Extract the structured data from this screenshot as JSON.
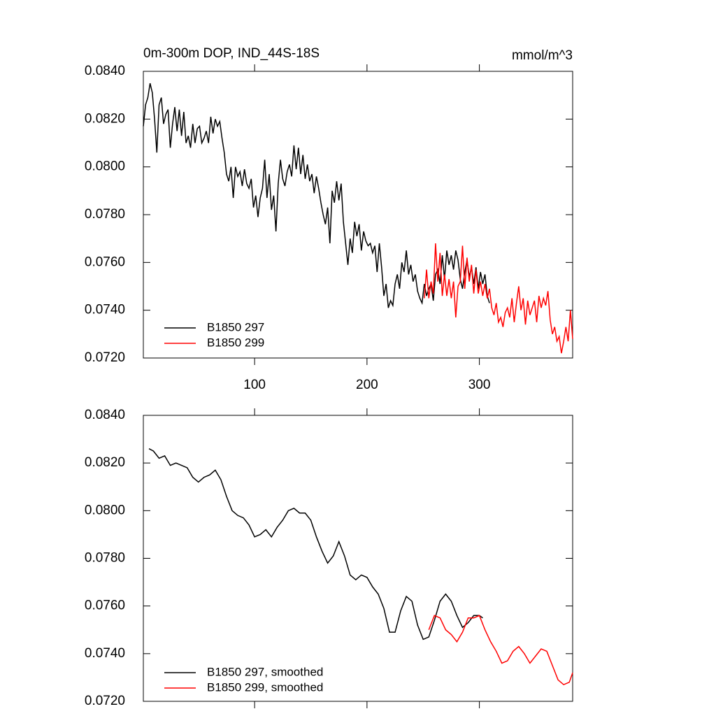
{
  "chart_data": [
    {
      "type": "line",
      "title": "0m-300m DOP, IND_44S-18S",
      "units": "mmol/m^3",
      "xlim": [
        1,
        383
      ],
      "ylim": [
        0.072,
        0.084
      ],
      "xticks": [
        100,
        200,
        300
      ],
      "yticks": [
        {
          "value": 0.072,
          "label": "0.0720"
        },
        {
          "value": 0.074,
          "label": "0.0740"
        },
        {
          "value": 0.076,
          "label": "0.0760"
        },
        {
          "value": 0.078,
          "label": "0.0780"
        },
        {
          "value": 0.08,
          "label": "0.0800"
        },
        {
          "value": 0.082,
          "label": "0.0820"
        },
        {
          "value": 0.084,
          "label": "0.0840"
        }
      ],
      "series": [
        {
          "name": "B1850 297",
          "color": "#000000",
          "x": [
            1,
            3,
            5,
            7,
            9,
            11,
            13,
            15,
            17,
            19,
            21,
            23,
            25,
            27,
            29,
            31,
            33,
            35,
            37,
            39,
            41,
            43,
            45,
            47,
            49,
            51,
            53,
            55,
            57,
            59,
            61,
            63,
            65,
            67,
            69,
            71,
            73,
            75,
            77,
            79,
            81,
            83,
            85,
            87,
            89,
            91,
            93,
            95,
            97,
            99,
            101,
            103,
            105,
            107,
            109,
            111,
            113,
            115,
            117,
            119,
            121,
            123,
            125,
            127,
            129,
            131,
            133,
            135,
            137,
            139,
            141,
            143,
            145,
            147,
            149,
            151,
            153,
            155,
            157,
            159,
            161,
            163,
            165,
            167,
            169,
            171,
            173,
            175,
            177,
            179,
            181,
            183,
            185,
            187,
            189,
            191,
            193,
            195,
            197,
            199,
            201,
            203,
            205,
            207,
            209,
            211,
            213,
            215,
            217,
            219,
            221,
            223,
            225,
            227,
            229,
            231,
            233,
            235,
            237,
            239,
            241,
            243,
            245,
            247,
            249,
            251,
            253,
            255,
            257,
            259,
            261,
            263,
            265,
            267,
            269,
            271,
            273,
            275,
            277,
            279,
            281,
            283,
            285,
            287,
            289,
            291,
            293,
            295,
            297,
            299,
            301,
            303,
            305,
            307,
            309
          ],
          "values": [
            0.0817,
            0.0826,
            0.0829,
            0.0835,
            0.0831,
            0.082,
            0.0806,
            0.0826,
            0.0829,
            0.0818,
            0.0822,
            0.0824,
            0.0808,
            0.0818,
            0.0825,
            0.0815,
            0.0824,
            0.0813,
            0.0823,
            0.081,
            0.0813,
            0.0808,
            0.0818,
            0.081,
            0.0816,
            0.0817,
            0.081,
            0.0812,
            0.0815,
            0.081,
            0.0821,
            0.0814,
            0.082,
            0.0817,
            0.0819,
            0.0812,
            0.0806,
            0.0797,
            0.0794,
            0.08,
            0.0787,
            0.08,
            0.0796,
            0.0798,
            0.0792,
            0.0799,
            0.0793,
            0.0791,
            0.0795,
            0.0783,
            0.0788,
            0.0779,
            0.0787,
            0.0791,
            0.0803,
            0.0787,
            0.0797,
            0.0782,
            0.0788,
            0.0773,
            0.0793,
            0.0803,
            0.0795,
            0.0792,
            0.0798,
            0.0801,
            0.0796,
            0.0809,
            0.0799,
            0.0808,
            0.0797,
            0.0805,
            0.0795,
            0.0801,
            0.0794,
            0.0797,
            0.0789,
            0.0796,
            0.0791,
            0.0785,
            0.078,
            0.0776,
            0.0783,
            0.0768,
            0.079,
            0.0785,
            0.0794,
            0.0786,
            0.0793,
            0.0777,
            0.0768,
            0.0759,
            0.077,
            0.0764,
            0.0777,
            0.0771,
            0.0776,
            0.0765,
            0.0773,
            0.0769,
            0.0767,
            0.0768,
            0.0764,
            0.0767,
            0.0756,
            0.0768,
            0.0758,
            0.0746,
            0.0751,
            0.0741,
            0.0744,
            0.0742,
            0.0751,
            0.0755,
            0.0749,
            0.076,
            0.0756,
            0.0765,
            0.0755,
            0.0759,
            0.0752,
            0.0755,
            0.0748,
            0.0745,
            0.0743,
            0.0751,
            0.0746,
            0.0749,
            0.0751,
            0.0744,
            0.0755,
            0.0757,
            0.0751,
            0.0763,
            0.0753,
            0.0765,
            0.0759,
            0.0763,
            0.0757,
            0.0765,
            0.0761,
            0.0753,
            0.0749,
            0.0756,
            0.0761,
            0.0754,
            0.0758,
            0.0751,
            0.0758,
            0.0749,
            0.0756,
            0.0751,
            0.0755,
            0.0746,
            0.0743
          ]
        },
        {
          "name": "B1850 299",
          "color": "#ff0000",
          "x": [
            251,
            253,
            255,
            257,
            259,
            261,
            263,
            265,
            267,
            269,
            271,
            273,
            275,
            277,
            279,
            281,
            283,
            285,
            287,
            289,
            291,
            293,
            295,
            297,
            299,
            301,
            303,
            305,
            307,
            309,
            311,
            313,
            315,
            317,
            319,
            321,
            323,
            325,
            327,
            329,
            331,
            333,
            335,
            337,
            339,
            341,
            343,
            345,
            347,
            349,
            351,
            353,
            355,
            357,
            359,
            361,
            363,
            365,
            367,
            369,
            371,
            373,
            375,
            377,
            379,
            381,
            383
          ],
          "values": [
            0.0745,
            0.0757,
            0.0745,
            0.0752,
            0.0747,
            0.0768,
            0.0752,
            0.0764,
            0.0746,
            0.0755,
            0.0746,
            0.0753,
            0.0745,
            0.0752,
            0.0737,
            0.075,
            0.0752,
            0.0767,
            0.0749,
            0.0762,
            0.0752,
            0.0759,
            0.0747,
            0.0757,
            0.0747,
            0.0752,
            0.0746,
            0.0751,
            0.0745,
            0.0749,
            0.0741,
            0.0738,
            0.0743,
            0.0735,
            0.0737,
            0.0733,
            0.0739,
            0.0741,
            0.0737,
            0.0745,
            0.0735,
            0.0743,
            0.075,
            0.074,
            0.0745,
            0.0734,
            0.0744,
            0.0738,
            0.0741,
            0.0744,
            0.0735,
            0.0746,
            0.0741,
            0.0745,
            0.0742,
            0.0748,
            0.0736,
            0.073,
            0.0733,
            0.0727,
            0.0729,
            0.0722,
            0.0727,
            0.0733,
            0.0727,
            0.074,
            0.0728
          ]
        }
      ]
    },
    {
      "type": "line",
      "xlim": [
        1,
        383
      ],
      "ylim": [
        0.072,
        0.084
      ],
      "xticks": [
        100,
        200,
        300
      ],
      "yticks": [
        {
          "value": 0.072,
          "label": "0.0720"
        },
        {
          "value": 0.074,
          "label": "0.0740"
        },
        {
          "value": 0.076,
          "label": "0.0760"
        },
        {
          "value": 0.078,
          "label": "0.0780"
        },
        {
          "value": 0.08,
          "label": "0.0800"
        },
        {
          "value": 0.082,
          "label": "0.0820"
        },
        {
          "value": 0.084,
          "label": "0.0840"
        }
      ],
      "series": [
        {
          "name": "B1850 297, smoothed",
          "color": "#000000",
          "x": [
            6,
            10,
            15,
            20,
            25,
            30,
            35,
            40,
            45,
            50,
            55,
            60,
            65,
            70,
            75,
            80,
            85,
            90,
            95,
            100,
            105,
            110,
            115,
            120,
            125,
            130,
            135,
            140,
            145,
            150,
            155,
            160,
            165,
            170,
            175,
            180,
            185,
            190,
            195,
            200,
            205,
            210,
            215,
            220,
            225,
            230,
            235,
            240,
            245,
            250,
            255,
            260,
            265,
            270,
            275,
            280,
            285,
            290,
            295,
            300,
            303
          ],
          "values": [
            0.0826,
            0.0825,
            0.0822,
            0.0823,
            0.0819,
            0.082,
            0.0819,
            0.0818,
            0.0814,
            0.0812,
            0.0814,
            0.0815,
            0.0817,
            0.0813,
            0.0806,
            0.08,
            0.0798,
            0.0797,
            0.0794,
            0.0789,
            0.079,
            0.0792,
            0.0789,
            0.0793,
            0.0796,
            0.08,
            0.0801,
            0.0799,
            0.0799,
            0.0796,
            0.0789,
            0.0783,
            0.0778,
            0.0781,
            0.0787,
            0.0781,
            0.0773,
            0.0771,
            0.0773,
            0.0772,
            0.0768,
            0.0765,
            0.0759,
            0.0749,
            0.0749,
            0.0758,
            0.0764,
            0.0762,
            0.0752,
            0.0746,
            0.0747,
            0.0754,
            0.0762,
            0.0765,
            0.0762,
            0.0756,
            0.0751,
            0.0753,
            0.0756,
            0.0756,
            0.0755
          ]
        },
        {
          "name": "B1850 299, smoothed",
          "color": "#ff0000",
          "x": [
            255,
            260,
            265,
            270,
            275,
            280,
            285,
            290,
            295,
            300,
            305,
            310,
            315,
            320,
            325,
            330,
            335,
            340,
            345,
            350,
            355,
            360,
            365,
            370,
            375,
            380,
            383
          ],
          "values": [
            0.075,
            0.0756,
            0.0755,
            0.075,
            0.0748,
            0.0745,
            0.0749,
            0.0755,
            0.0755,
            0.0756,
            0.075,
            0.0745,
            0.0741,
            0.0736,
            0.0737,
            0.0741,
            0.0743,
            0.074,
            0.0736,
            0.0739,
            0.0742,
            0.0741,
            0.0735,
            0.0729,
            0.0727,
            0.0728,
            0.0732
          ]
        }
      ]
    }
  ]
}
